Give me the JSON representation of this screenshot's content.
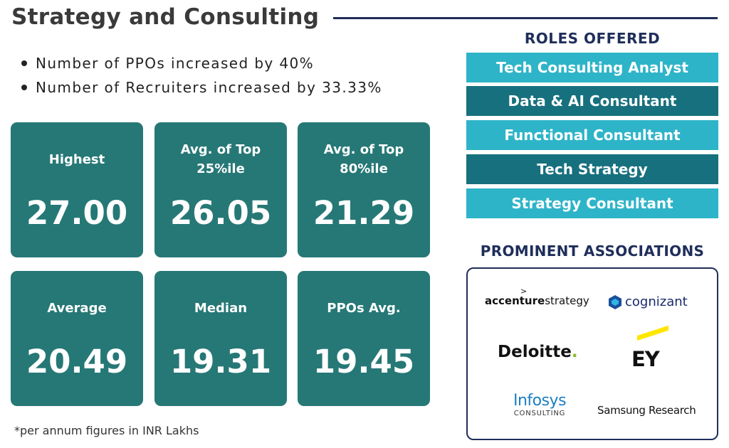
{
  "title": "Strategy and Consulting",
  "highlights": [
    "Number of PPOs increased by 40%",
    "Number of Recruiters increased by 33.33%"
  ],
  "stats": [
    {
      "label": "Highest",
      "value": "27.00"
    },
    {
      "label": "Avg. of Top 25%ile",
      "value": "26.05"
    },
    {
      "label": "Avg. of Top 80%ile",
      "value": "21.29"
    },
    {
      "label": "Average",
      "value": "20.49"
    },
    {
      "label": "Median",
      "value": "19.31"
    },
    {
      "label": "PPOs Avg.",
      "value": "19.45"
    }
  ],
  "note": "*per annum figures in INR Lakhs",
  "roles": {
    "heading": "ROLES OFFERED",
    "items": [
      "Tech Consulting Analyst",
      "Data & AI Consultant",
      "Functional Consultant",
      "Tech Strategy",
      "Strategy Consultant"
    ]
  },
  "associations": {
    "heading": "PROMINENT ASSOCIATIONS",
    "logos": {
      "accenture_bold": "accenture",
      "accenture_rest": "strategy",
      "cognizant": "cognizant",
      "deloitte": "Deloitte",
      "ey": "EY",
      "infosys": "Infosys",
      "infosys_sub": "CONSULTING",
      "samsung": "Samsung Research"
    }
  },
  "colors": {
    "card_bg": "#267876",
    "role_light": "#2eb4c8",
    "role_dark": "#17707e",
    "heading_navy": "#1f2e5a"
  }
}
